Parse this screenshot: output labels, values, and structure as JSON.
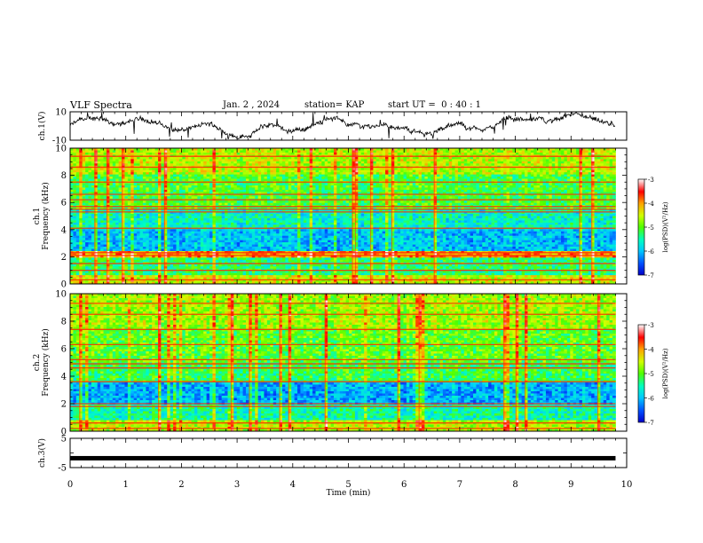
{
  "header": {
    "title": "VLF Spectra",
    "date": "Jan. 2 , 2024",
    "station": "station= KAP",
    "start": "start UT =  0 : 40 : 1"
  },
  "chart_data": [
    {
      "type": "line",
      "panel": "ch1-waveform",
      "ylabel": "ch.1(V)",
      "ylim": [
        -10,
        10
      ],
      "ytick_labels": [
        "10",
        "-10"
      ],
      "xlim": [
        0,
        10
      ],
      "x_coverage_min": 9.8,
      "trace_color": "#000000"
    },
    {
      "type": "heatmap",
      "panel": "ch1-spectrogram",
      "ylabel": "ch.1\nFrequency (kHz)",
      "ylim": [
        0,
        10
      ],
      "yticks": [
        0,
        2,
        4,
        6,
        8,
        10
      ],
      "xlim": [
        0,
        10
      ],
      "x_coverage_min": 9.8,
      "colorbar": {
        "label": "log(PSD)(V²/Hz)",
        "range": [
          -7,
          -3
        ],
        "ticks": [
          -3,
          -4,
          -5,
          -6,
          -7
        ]
      },
      "bands_khz": [
        {
          "from": 0,
          "to": 0.6,
          "level": -4.5
        },
        {
          "from": 0.6,
          "to": 2.0,
          "level": -5.3
        },
        {
          "from": 2.0,
          "to": 2.4,
          "level": -4.0
        },
        {
          "from": 2.4,
          "to": 4.0,
          "level": -6.0
        },
        {
          "from": 4.0,
          "to": 5.5,
          "level": -5.6
        },
        {
          "from": 5.5,
          "to": 8.0,
          "level": -5.1
        },
        {
          "from": 8.0,
          "to": 10.0,
          "level": -4.6
        }
      ],
      "lines_khz": [
        0.3,
        1.0,
        1.5,
        2.1,
        2.3,
        4.1,
        5.3,
        5.5,
        5.7,
        6.2,
        6.6,
        7.5,
        8.6,
        9.4
      ]
    },
    {
      "type": "heatmap",
      "panel": "ch2-spectrogram",
      "ylabel": "ch.2\nFrequency (kHz)",
      "ylim": [
        0,
        10
      ],
      "yticks": [
        0,
        2,
        4,
        6,
        8,
        10
      ],
      "xlim": [
        0,
        10
      ],
      "x_coverage_min": 9.8,
      "colorbar": {
        "label": "log(PSD)(V²/Hz)",
        "range": [
          -7,
          -3
        ],
        "ticks": [
          -3,
          -4,
          -5,
          -6,
          -7
        ]
      },
      "bands_khz": [
        {
          "from": 0,
          "to": 0.8,
          "level": -4.6
        },
        {
          "from": 0.8,
          "to": 2.0,
          "level": -5.5
        },
        {
          "from": 2.0,
          "to": 3.5,
          "level": -6.1
        },
        {
          "from": 3.5,
          "to": 5.0,
          "level": -5.2
        },
        {
          "from": 5.0,
          "to": 7.5,
          "level": -5.0
        },
        {
          "from": 7.5,
          "to": 10.0,
          "level": -4.7
        }
      ],
      "lines_khz": [
        0.2,
        0.6,
        1.8,
        2.0,
        3.6,
        4.6,
        4.9,
        5.2,
        6.3,
        7.4,
        8.5,
        9.3
      ]
    },
    {
      "type": "line",
      "panel": "ch3-waveform",
      "ylabel": "ch.3(V)",
      "ylim": [
        -5,
        5
      ],
      "ytick_labels": [
        "5",
        "-5"
      ],
      "xlim": [
        0,
        10
      ],
      "x_coverage_min": 9.8,
      "constant_level": -1.8,
      "trace_color": "#000000"
    },
    {
      "type": "axis",
      "panel": "time-axis",
      "xlabel": "Time (min)",
      "xticks": [
        0,
        1,
        2,
        3,
        4,
        5,
        6,
        7,
        8,
        9,
        10
      ]
    }
  ]
}
